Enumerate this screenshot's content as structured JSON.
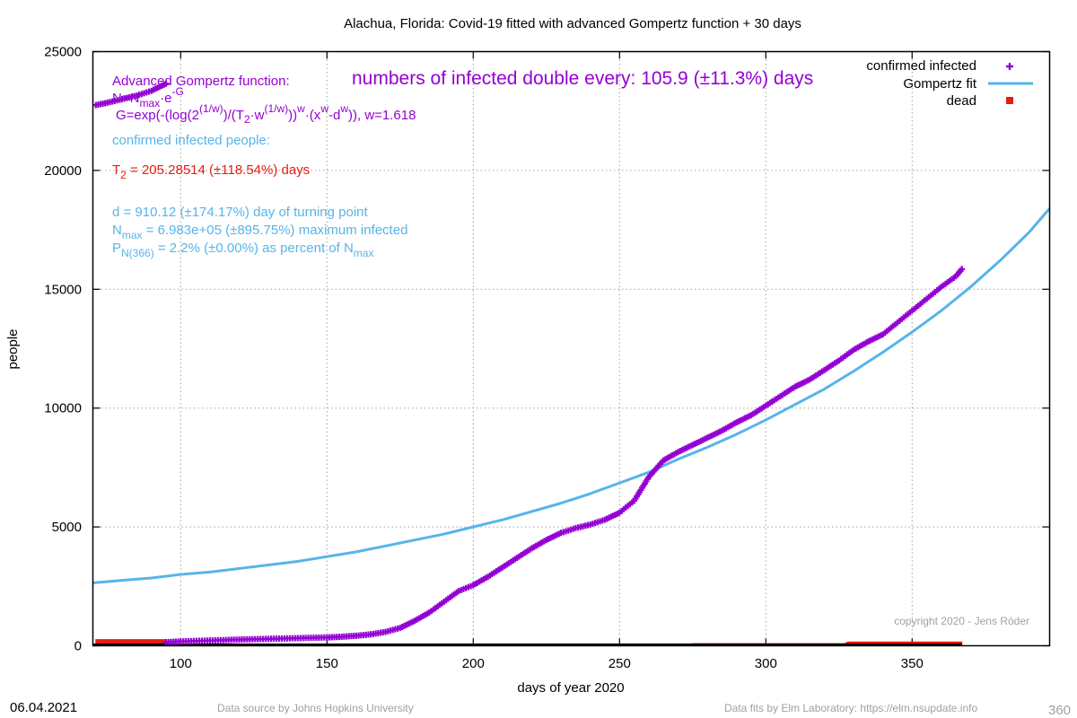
{
  "footer": {
    "date": "06.04.2021",
    "source": "Data source by Johns Hopkins University",
    "fits": "Data fits by Elm Laboratory: https://elm.nsupdate.info",
    "corner": "360"
  },
  "colors": {
    "infected": "#9400d3",
    "fit": "#56b4e9",
    "dead": "#e51e10",
    "annotation_red": "#e51e10"
  },
  "annotations": {
    "doubling": "numbers of infected double every: 105.9 (±11.3%) days",
    "func_title": "Advanced Gompertz function:",
    "formula1": {
      "a": "N=N",
      "b": "max",
      "c": "·e",
      "d": "-G"
    },
    "formula2": {
      "a": "G=exp(-(log(2",
      "b": "(1/w)",
      "c": ")/(T",
      "d": "2",
      "e": "·w",
      "f": "(1/w)",
      "g": "))",
      "h": "w",
      "i": "·(x",
      "j": "w",
      "k": "-d",
      "l": "w",
      "m": ")), w=1.618"
    },
    "confirmed_label": "confirmed infected people:",
    "t2": {
      "a": "T",
      "b": "2",
      "c": " = 205.28514 (±118.54%) days"
    },
    "d_line": "d = 910.12 (±174.17%) day of turning point",
    "nmax": {
      "a": "N",
      "b": "max",
      "c": " = 6.983e+05 (±895.75%) maximum infected"
    },
    "pn": {
      "a": "P",
      "b": "N(366)",
      "c": " = 2.2% (±0.00%) as percent of N",
      "d": "max"
    },
    "copyright": "copyright 2020 - Jens Röder"
  },
  "chart_data": {
    "type": "line",
    "title": "Alachua,  Florida: Covid-19 fitted with advanced Gompertz function + 30 days",
    "xlabel": "days of year 2020",
    "ylabel": "people",
    "xlim": [
      70,
      397
    ],
    "ylim": [
      0,
      25000
    ],
    "xticks": [
      100,
      150,
      200,
      250,
      300,
      350
    ],
    "yticks": [
      0,
      5000,
      10000,
      15000,
      20000,
      25000
    ],
    "grid": true,
    "legend_position": "top-right",
    "series": [
      {
        "name": "confirmed infected",
        "style": "points",
        "segments": [
          {
            "x": [
              71,
              75,
              80,
              85,
              90,
              95
            ],
            "y": [
              22750,
              22850,
              23000,
              23150,
              23350,
              23650
            ]
          },
          {
            "x": [
              95,
              100,
              110,
              120,
              130,
              140,
              150,
              155,
              160,
              165,
              170,
              175,
              180,
              185,
              190,
              195,
              200,
              205,
              210,
              215,
              220,
              225,
              230,
              235,
              240,
              245,
              250,
              255,
              260,
              265,
              270,
              275,
              280,
              285,
              290,
              295,
              300,
              305,
              310,
              315,
              320,
              325,
              330,
              335,
              340,
              345,
              350,
              355,
              360,
              365,
              367
            ],
            "y": [
              150,
              180,
              220,
              260,
              290,
              320,
              350,
              380,
              420,
              480,
              580,
              750,
              1050,
              1400,
              1850,
              2300,
              2550,
              2900,
              3300,
              3700,
              4100,
              4450,
              4750,
              4950,
              5100,
              5300,
              5600,
              6100,
              7100,
              7800,
              8150,
              8450,
              8750,
              9050,
              9400,
              9700,
              10100,
              10500,
              10900,
              11200,
              11600,
              12000,
              12450,
              12800,
              13100,
              13600,
              14100,
              14600,
              15100,
              15550,
              15850
            ]
          }
        ]
      },
      {
        "name": "Gompertz fit",
        "style": "line",
        "x": [
          70,
          80,
          90,
          100,
          110,
          120,
          130,
          140,
          150,
          160,
          170,
          180,
          190,
          200,
          210,
          220,
          230,
          240,
          250,
          260,
          270,
          280,
          290,
          300,
          310,
          320,
          330,
          340,
          350,
          360,
          370,
          380,
          390,
          397
        ],
        "y": [
          2650,
          2750,
          2850,
          3000,
          3100,
          3250,
          3400,
          3550,
          3750,
          3950,
          4200,
          4450,
          4700,
          5000,
          5300,
          5650,
          6000,
          6400,
          6850,
          7300,
          7850,
          8350,
          8900,
          9500,
          10150,
          10800,
          11550,
          12350,
          13200,
          14100,
          15100,
          16200,
          17400,
          18400
        ]
      },
      {
        "name": "dead",
        "style": "boxes",
        "x": [
          71,
          95,
          96,
          208,
          209,
          274,
          275,
          327,
          328,
          367
        ],
        "y": [
          260,
          260,
          20,
          20,
          60,
          60,
          90,
          90,
          160,
          160
        ]
      }
    ]
  }
}
